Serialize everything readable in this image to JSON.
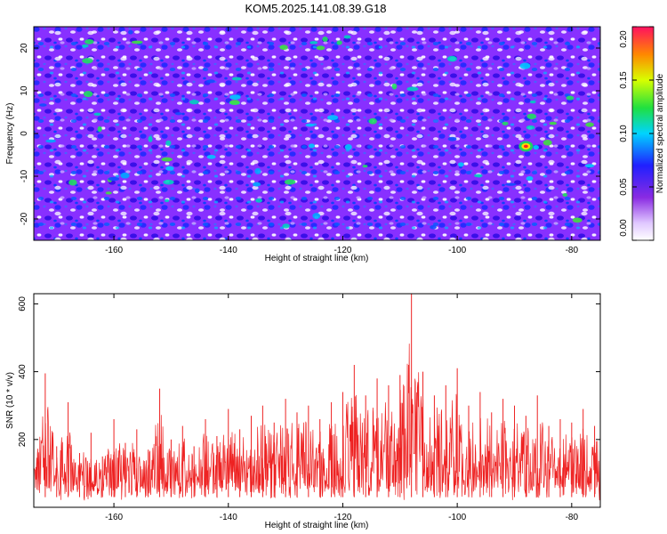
{
  "chart_data": [
    {
      "type": "heatmap",
      "title": "KOM5.2025.141.08.39.G18",
      "xlabel": "Height of straight line (km)",
      "ylabel": "Frequency (Hz)",
      "xlim": [
        -174,
        -75
      ],
      "ylim": [
        -25,
        25
      ],
      "x_ticks": [
        -160,
        -140,
        -120,
        -100,
        -80
      ],
      "y_ticks": [
        -20,
        -10,
        0,
        10,
        20
      ],
      "colorbar": {
        "label": "Normalized spectral amplitude",
        "range": [
          0.0,
          0.2
        ],
        "ticks": [
          "0.00",
          "0.05",
          "0.10",
          "0.15",
          "0.20"
        ]
      },
      "peak": {
        "x": -88,
        "y": -3,
        "value": 0.2
      }
    },
    {
      "type": "line",
      "xlabel": "Height of straight line (km)",
      "ylabel": "SNR (10 * v/v)",
      "xlim": [
        -174,
        -75
      ],
      "ylim": [
        0,
        630
      ],
      "x_ticks": [
        -160,
        -140,
        -120,
        -100,
        -80
      ],
      "y_ticks": [
        200,
        400,
        600
      ],
      "grid": false,
      "series": [
        {
          "color": "#ee2222",
          "x": [
            -174,
            -172,
            -170,
            -168,
            -166,
            -164,
            -162,
            -160,
            -158,
            -156,
            -154,
            -152,
            -150,
            -148,
            -146,
            -144,
            -142,
            -140,
            -138,
            -136,
            -134,
            -132,
            -130,
            -128,
            -126,
            -124,
            -122,
            -120,
            -118,
            -116,
            -114,
            -112,
            -110,
            -108,
            -106,
            -104,
            -102,
            -100,
            -98,
            -96,
            -94,
            -92,
            -90,
            -88,
            -86,
            -84,
            -82,
            -80,
            -78,
            -76
          ],
          "y": [
            120,
            395,
            180,
            310,
            160,
            220,
            150,
            260,
            190,
            230,
            170,
            350,
            200,
            240,
            180,
            260,
            210,
            290,
            230,
            270,
            300,
            250,
            320,
            280,
            300,
            260,
            310,
            340,
            420,
            330,
            380,
            360,
            390,
            630,
            400,
            330,
            360,
            410,
            300,
            340,
            280,
            320,
            300,
            270,
            330,
            240,
            260,
            250,
            290,
            240
          ]
        }
      ],
      "peak": {
        "x": -108,
        "y": 630
      }
    }
  ]
}
